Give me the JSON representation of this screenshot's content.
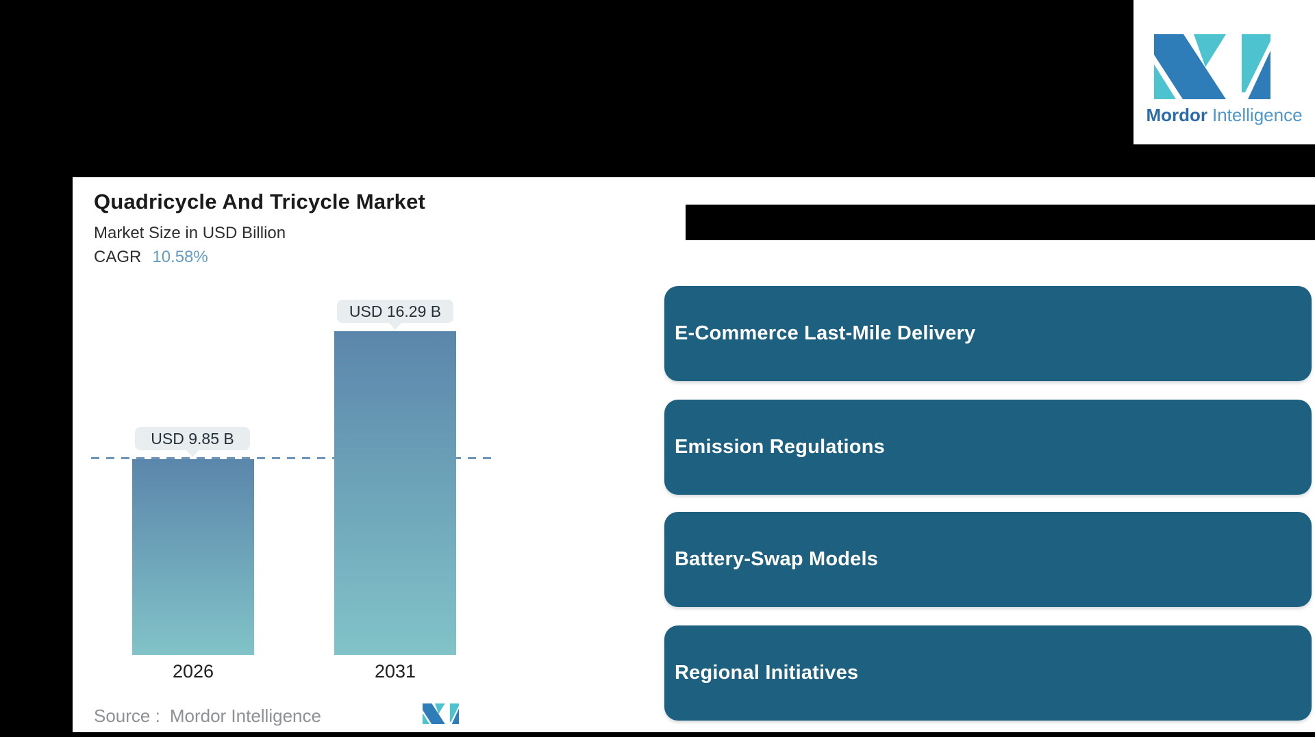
{
  "brand": {
    "name_bold": "Mordor",
    "name_light": "Intelligence",
    "colors": {
      "logo_blue": "#2e7cb8",
      "logo_teal": "#4cc3ce",
      "text_bold": "#2a6cab",
      "text_light": "#4f97c8"
    }
  },
  "chart": {
    "title": "Quadricycle And Tricycle Market",
    "subtitle": "Market Size in USD Billion",
    "cagr_label": "CAGR",
    "cagr_value": "10.58%",
    "bars": [
      {
        "year": "2026",
        "label": "USD 9.85 B"
      },
      {
        "year": "2031",
        "label": "USD 16.29 B"
      }
    ],
    "source_label": "Source :",
    "source_value": "Mordor Intelligence",
    "colors": {
      "bar_gradient_top": "#5b86ab",
      "bar_gradient_bottom": "#81c3c8",
      "reference_dash": "#6d94bb",
      "cagr_value": "#649bc5",
      "label_pill_bg": "#e8eef0"
    }
  },
  "drivers": {
    "tile_color": "#1e6080",
    "items": [
      {
        "label": "E-Commerce Last-Mile Delivery"
      },
      {
        "label": "Emission Regulations"
      },
      {
        "label": "Battery-Swap Models"
      },
      {
        "label": "Regional Initiatives"
      }
    ]
  },
  "chart_data": {
    "type": "bar",
    "title": "Quadricycle And Tricycle Market",
    "subtitle": "Market Size in USD Billion",
    "cagr_percent": 10.58,
    "categories": [
      "2026",
      "2031"
    ],
    "values": [
      9.85,
      16.29
    ],
    "value_labels": [
      "USD 9.85 B",
      "USD 16.29 B"
    ],
    "unit": "USD Billion",
    "ylim": [
      0,
      17
    ],
    "grid": false,
    "legend": false,
    "reference_line_y": 9.85,
    "reference_line_style": "dashed",
    "source": "Mordor Intelligence"
  }
}
